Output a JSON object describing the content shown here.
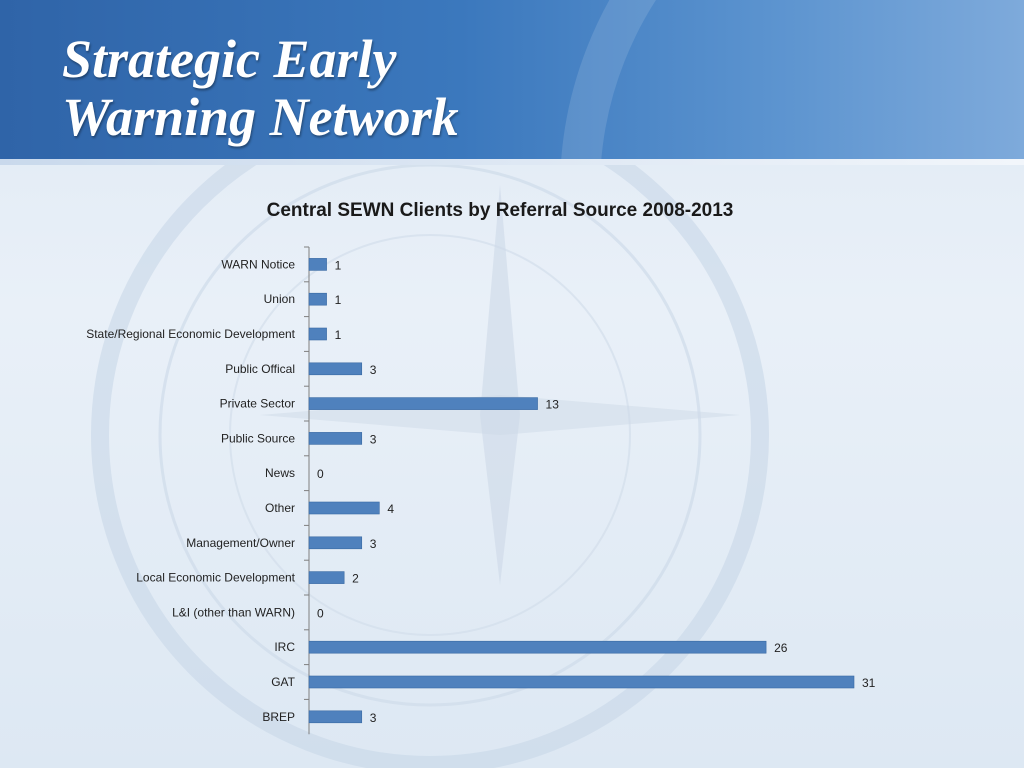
{
  "slide": {
    "title_line1": "Strategic Early",
    "title_line2": "Warning Network"
  },
  "colors": {
    "bar": "#4f81bd",
    "header": "#3b78bd"
  },
  "chart_data": {
    "type": "bar",
    "orientation": "horizontal",
    "title": "Central SEWN Clients by Referral Source  2008-2013",
    "categories": [
      "WARN Notice",
      "Union",
      "State/Regional Economic Development",
      "Public Offical",
      "Private Sector",
      "Public Source",
      "News",
      "Other",
      "Management/Owner",
      "Local Economic Development",
      "L&I (other than WARN)",
      "IRC",
      "GAT",
      "BREP"
    ],
    "values": [
      1,
      1,
      1,
      3,
      13,
      3,
      0,
      4,
      3,
      2,
      0,
      26,
      31,
      3
    ],
    "xlim": [
      0,
      31
    ],
    "data_labels": true,
    "grid": false,
    "legend": "none"
  }
}
